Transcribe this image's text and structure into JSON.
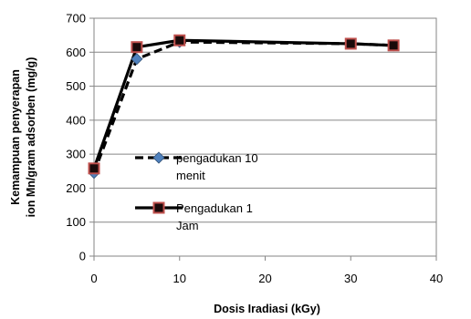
{
  "chart_data": {
    "type": "line",
    "xlabel": "Dosis Iradiasi (kGy)",
    "ylabel": [
      "Kemampuan penyerapan",
      "ion Mn/gram adsorben (mg/g)"
    ],
    "xlim": [
      0,
      40
    ],
    "ylim": [
      0,
      700
    ],
    "xticks": [
      0,
      10,
      20,
      30,
      40
    ],
    "yticks": [
      0,
      100,
      200,
      300,
      400,
      500,
      600,
      700
    ],
    "grid": "horizontal",
    "legend_position": "left inside",
    "series": [
      {
        "name": [
          "pengadukan 10",
          "menit"
        ],
        "style": "dashed",
        "marker": "diamond",
        "line_color": "#000000",
        "marker_color": "#4F81BD",
        "x": [
          0,
          5,
          10,
          30,
          35
        ],
        "y": [
          245,
          580,
          630,
          625,
          620
        ]
      },
      {
        "name": [
          "Pengadukan 1",
          "Jam"
        ],
        "style": "solid",
        "marker": "square",
        "line_color": "#000000",
        "marker_fill": "#1a0a0a",
        "marker_color": "#C0504D",
        "x": [
          0,
          5,
          10,
          30,
          35
        ],
        "y": [
          258,
          615,
          635,
          625,
          620
        ]
      }
    ]
  }
}
